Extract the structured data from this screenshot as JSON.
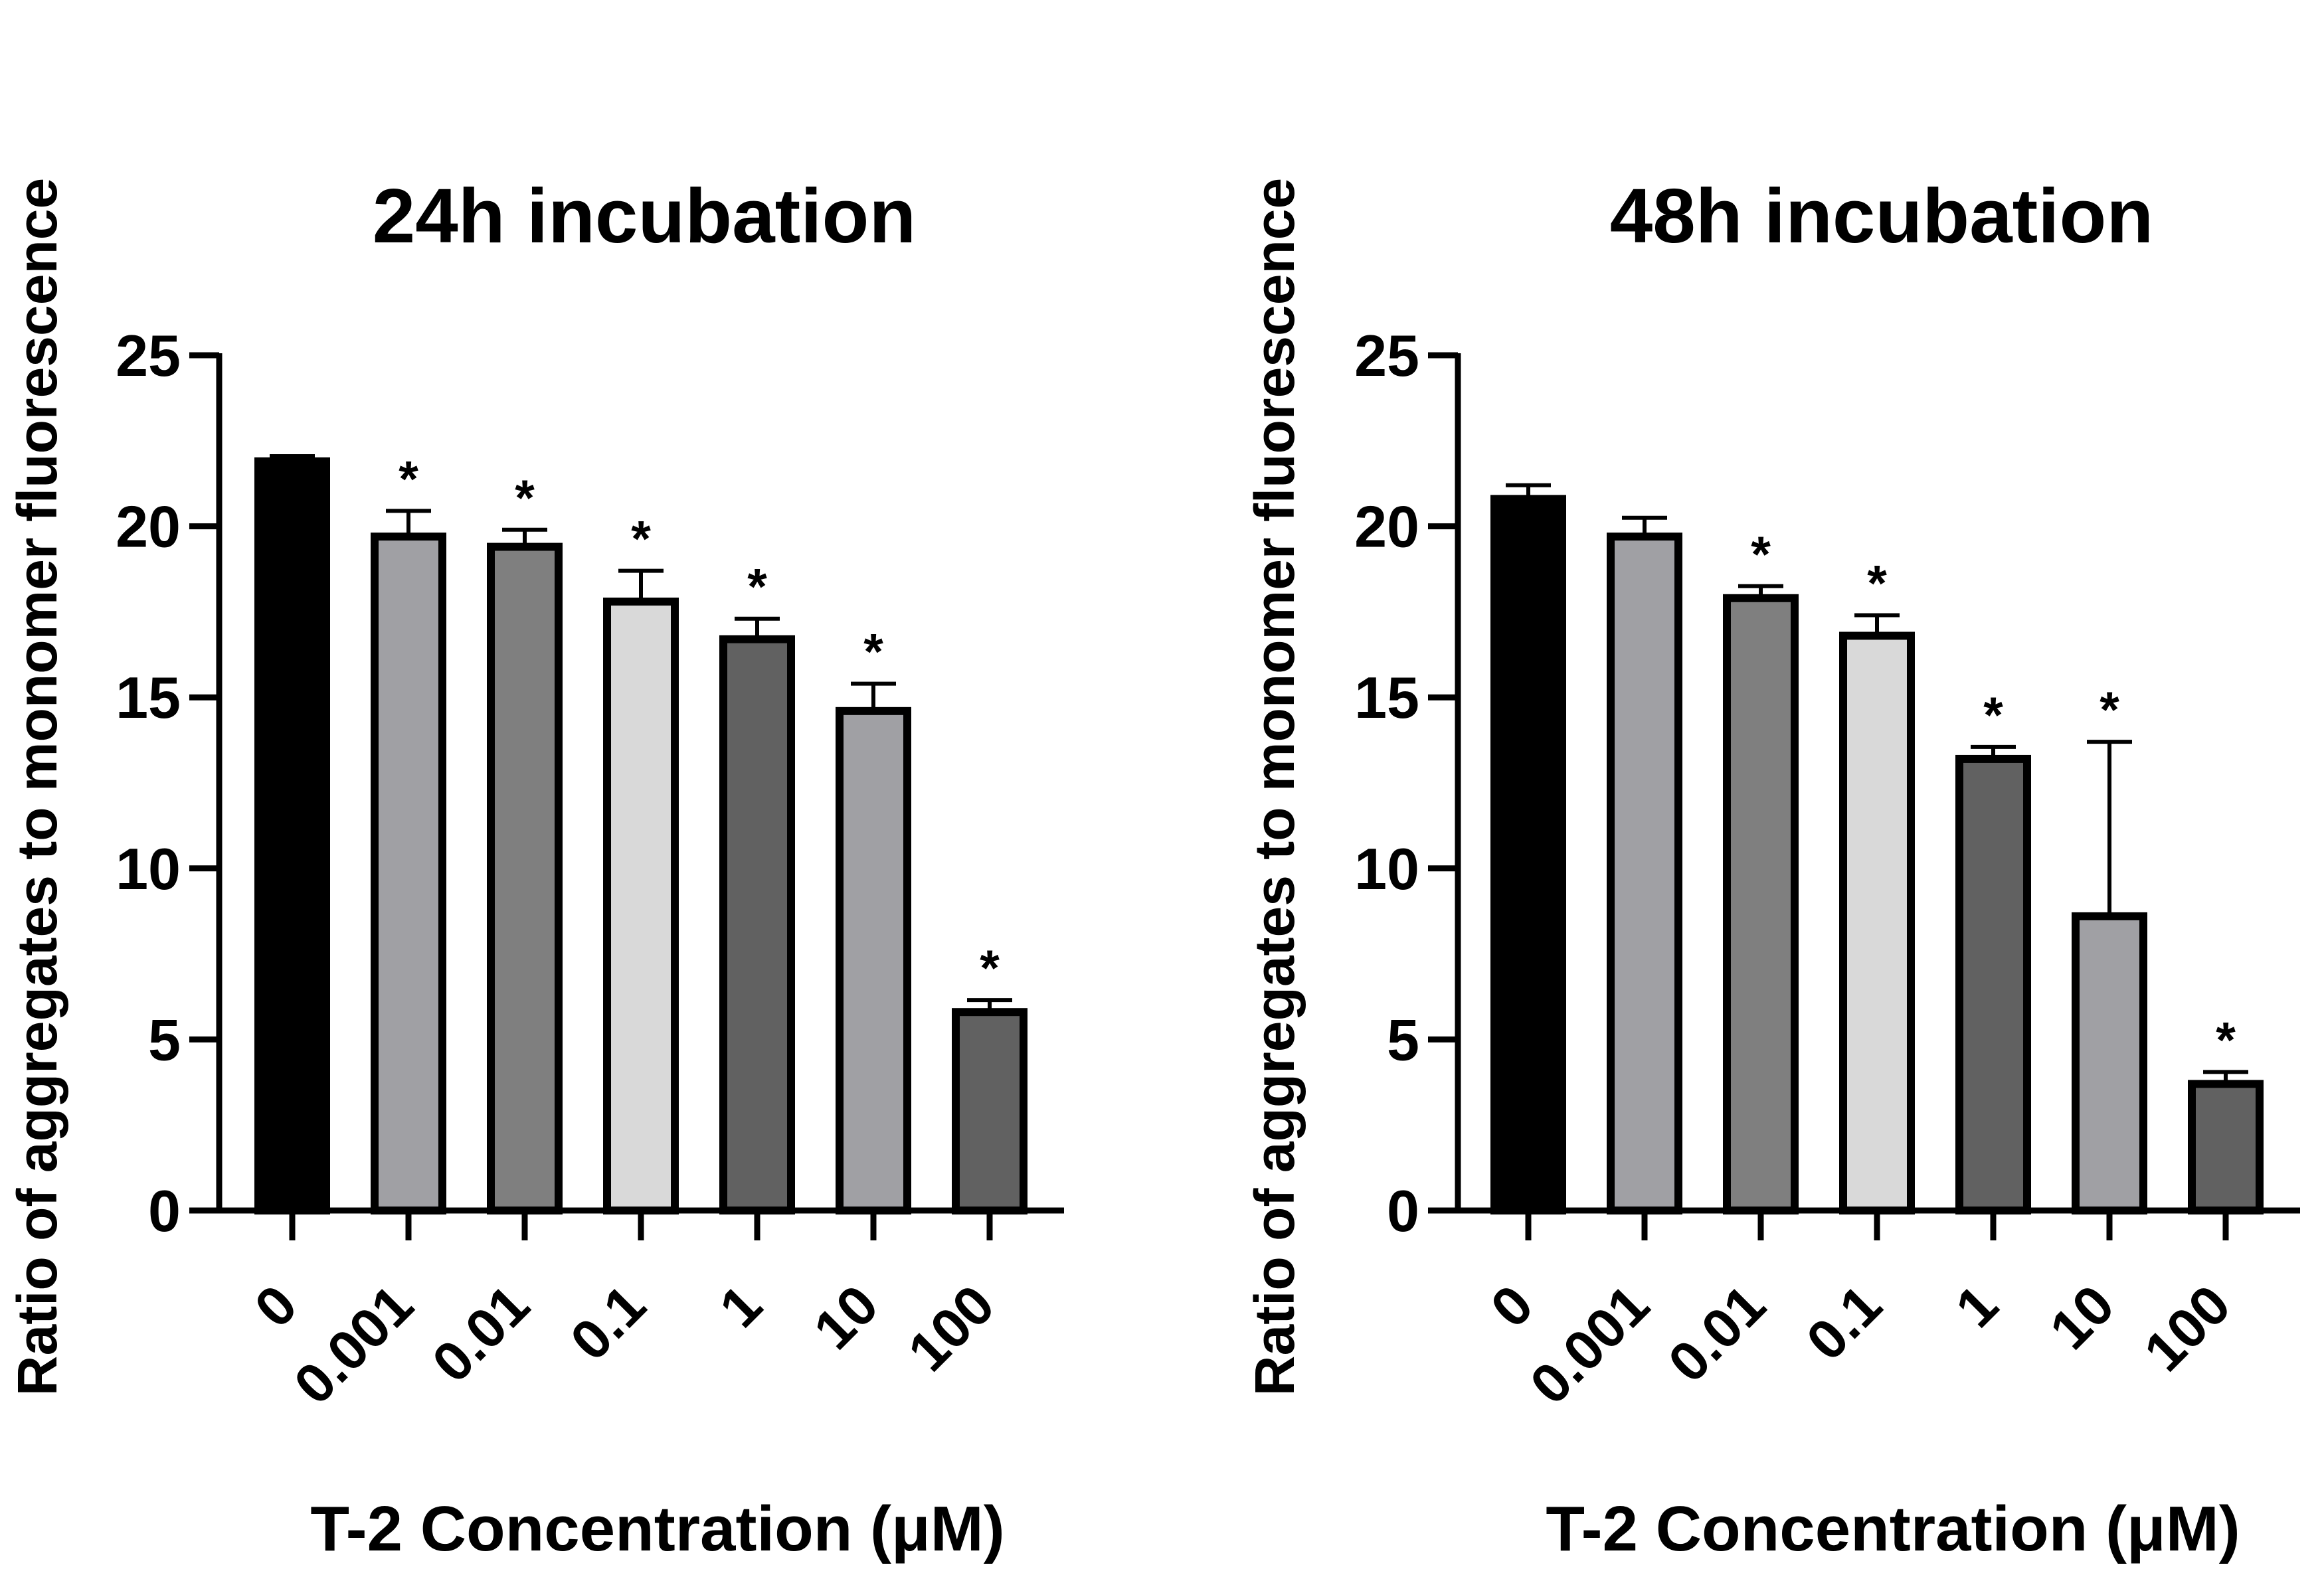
{
  "chart_data": [
    {
      "type": "bar",
      "title": "24h incubation",
      "xlabel": "T-2 Concentration (μM)",
      "ylabel": "Ratio of aggregates to monomer fluorescence",
      "ylim": [
        0,
        25
      ],
      "yticks": [
        "0",
        "5",
        "10",
        "15",
        "20",
        "25"
      ],
      "categories": [
        "0",
        "0.001",
        "0.01",
        "0.1",
        "1",
        "10",
        "100"
      ],
      "values": [
        21.9,
        19.7,
        19.4,
        17.8,
        16.7,
        14.6,
        5.8
      ],
      "error_upper": [
        22.05,
        20.45,
        19.9,
        18.7,
        17.3,
        15.4,
        6.15
      ],
      "significance": [
        "",
        "*",
        "*",
        "*",
        "*",
        "*",
        "*"
      ],
      "bar_colors": [
        "#000000",
        "#a0a0a4",
        "#7f7f7f",
        "#d9d9d9",
        "#616161",
        "#a0a0a4",
        "#616161"
      ]
    },
    {
      "type": "bar",
      "title": "48h incubation",
      "xlabel": "T-2 Concentration (μM)",
      "ylabel": "Ratio of aggregates to monomer fluorescence",
      "ylim": [
        0,
        25
      ],
      "yticks": [
        "0",
        "5",
        "10",
        "15",
        "20",
        "25"
      ],
      "categories": [
        "0",
        "0.001",
        "0.01",
        "0.1",
        "1",
        "10",
        "100"
      ],
      "values": [
        20.8,
        19.7,
        17.9,
        16.8,
        13.2,
        8.6,
        3.7
      ],
      "error_upper": [
        21.2,
        20.25,
        18.25,
        17.4,
        13.55,
        13.7,
        4.05
      ],
      "significance": [
        "",
        "",
        "*",
        "*",
        "*",
        "*",
        "*"
      ],
      "bar_colors": [
        "#000000",
        "#a0a0a4",
        "#7f7f7f",
        "#d9d9d9",
        "#616161",
        "#a0a0a4",
        "#616161"
      ]
    }
  ]
}
